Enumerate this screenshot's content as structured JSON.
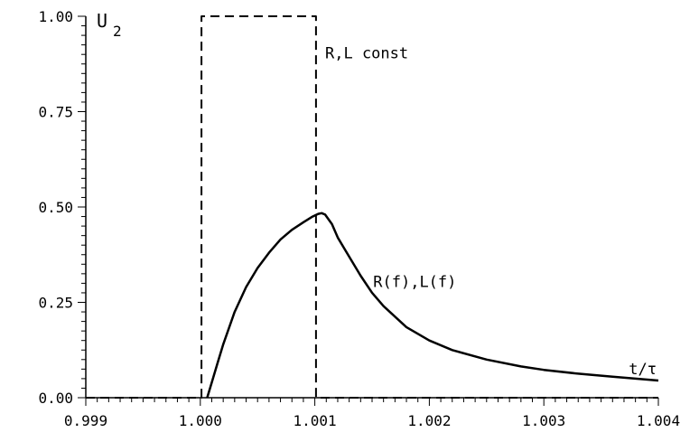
{
  "chart_data": {
    "type": "line",
    "title": "",
    "ylabel": "U",
    "ylabel_sub": "2",
    "xlabel": "t/τ",
    "xlim": [
      0.999,
      1.004
    ],
    "ylim": [
      0.0,
      1.0
    ],
    "x_ticks": [
      0.999,
      1.0,
      1.001,
      1.002,
      1.003,
      1.004
    ],
    "x_tick_labels": [
      "0.999",
      "1.000",
      "1.001",
      "1.002",
      "1.003",
      "1.004"
    ],
    "y_ticks": [
      0.0,
      0.25,
      0.5,
      0.75,
      1.0
    ],
    "y_tick_labels": [
      "0.00",
      "0.25",
      "0.50",
      "0.75",
      "1.00"
    ],
    "grid": false,
    "series": [
      {
        "name": "R,L const",
        "style": "dashed",
        "color": "#000000",
        "x": [
          0.999,
          0.99999,
          0.99999,
          1.00001,
          1.00001,
          1.00101,
          1.00101,
          1.004
        ],
        "y": [
          0.0,
          0.0,
          0.0,
          0.0,
          1.0,
          1.0,
          0.0,
          0.0
        ]
      },
      {
        "name": "R(f),L(f)",
        "style": "solid",
        "color": "#000000",
        "x": [
          1.00006,
          1.0001,
          1.00015,
          1.0002,
          1.0003,
          1.0004,
          1.0005,
          1.0006,
          1.0007,
          1.0008,
          1.0009,
          1.00098,
          1.00103,
          1.00106,
          1.00109,
          1.00115,
          1.0012,
          1.0013,
          1.0014,
          1.0015,
          1.0016,
          1.0018,
          1.002,
          1.0022,
          1.0025,
          1.0028,
          1.003,
          1.0033,
          1.0036,
          1.004
        ],
        "y": [
          0.0,
          0.04,
          0.09,
          0.14,
          0.225,
          0.29,
          0.34,
          0.38,
          0.415,
          0.44,
          0.46,
          0.475,
          0.482,
          0.484,
          0.48,
          0.455,
          0.42,
          0.37,
          0.32,
          0.275,
          0.24,
          0.185,
          0.15,
          0.125,
          0.1,
          0.082,
          0.073,
          0.063,
          0.055,
          0.045
        ]
      }
    ],
    "annotations": [
      {
        "text": "R,L const",
        "x": 1.00109,
        "y": 0.89
      },
      {
        "text": "R(f),L(f)",
        "x": 1.00151,
        "y": 0.29
      }
    ]
  }
}
